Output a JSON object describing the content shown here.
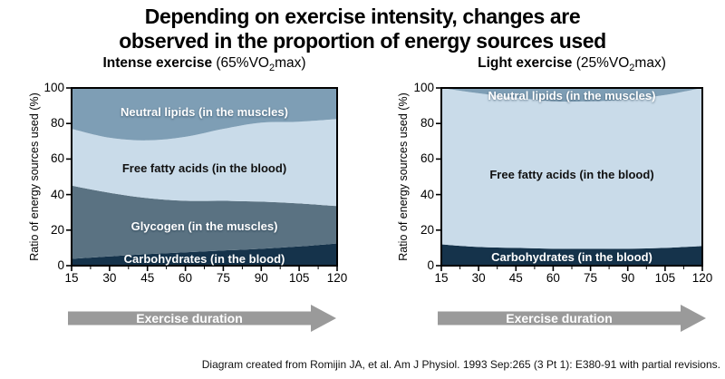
{
  "title": {
    "line1": "Depending on exercise intensity, changes are",
    "line2": "observed in the proportion of energy sources used"
  },
  "citation": "Diagram created from Romijin JA, et al. Am J Physiol. 1993 Sep:265 (3 Pt 1): E380-91 with partial revisions.",
  "colors": {
    "arrow": "#9A9A9A",
    "plot_border": "#000000",
    "carbohydrates": "#15334B",
    "glycogen": "#5A7282",
    "free_fatty_acids": "#C9DBE9",
    "neutral_lipids": "#7E9EB5"
  },
  "chart_data": [
    {
      "type": "area",
      "stacked": true,
      "title_bold": "Intense exercise",
      "title_paren_pre": " (65%VO",
      "title_subscript": "2",
      "title_paren_post": "max)",
      "ylabel": "Ratio of energy sources used (%)",
      "xlabel_arrow": "Exercise duration",
      "x": [
        15,
        30,
        45,
        60,
        75,
        90,
        105,
        120
      ],
      "x_tick_labels": [
        "15",
        "30",
        "45",
        "60",
        "75",
        "90",
        "105",
        "120"
      ],
      "ylim": [
        0,
        100
      ],
      "y_ticks": [
        0,
        20,
        40,
        60,
        80,
        100
      ],
      "grid": false,
      "series": [
        {
          "name": "Carbohydrates (in the blood)",
          "color": "#15334B",
          "label_color": "#FFFFFF",
          "cumulative_top": [
            3.8,
            5.2,
            6.5,
            7.5,
            8.5,
            9.5,
            10.8,
            12.5
          ]
        },
        {
          "name": "Glycogen (in the muscles)",
          "color": "#5A7282",
          "label_color": "#FFFFFF",
          "cumulative_top": [
            45,
            41,
            38,
            36.5,
            36.5,
            36,
            35,
            33.5
          ]
        },
        {
          "name": "Free fatty acids (in the blood)",
          "color": "#C9DBE9",
          "label_color": "#111111",
          "cumulative_top": [
            77,
            72,
            70.5,
            72.5,
            77,
            80.5,
            81,
            82.5
          ]
        },
        {
          "name": "Neutral lipids (in the muscles)",
          "color": "#7E9EB5",
          "label_color": "#FFFFFF",
          "cumulative_top": [
            100,
            100,
            100,
            100,
            100,
            100,
            100,
            100
          ]
        }
      ]
    },
    {
      "type": "area",
      "stacked": true,
      "title_bold": "Light exercise",
      "title_paren_pre": " (25%VO",
      "title_subscript": "2",
      "title_paren_post": "max)",
      "ylabel": "Ratio of energy sources used (%)",
      "xlabel_arrow": "Exercise duration",
      "x": [
        15,
        30,
        45,
        60,
        75,
        90,
        105,
        120
      ],
      "x_tick_labels": [
        "15",
        "30",
        "45",
        "60",
        "75",
        "90",
        "105",
        "120"
      ],
      "ylim": [
        0,
        100
      ],
      "y_ticks": [
        0,
        20,
        40,
        60,
        80,
        100
      ],
      "grid": false,
      "series": [
        {
          "name": "Carbohydrates (in the blood)",
          "color": "#15334B",
          "label_color": "#FFFFFF",
          "cumulative_top": [
            12,
            10.5,
            10,
            9.5,
            9.5,
            9.5,
            10,
            11
          ]
        },
        {
          "name": "Free fatty acids (in the blood)",
          "color": "#C9DBE9",
          "label_color": "#111111",
          "cumulative_top": [
            100,
            97,
            94.5,
            92.5,
            92.5,
            93.5,
            96,
            100
          ]
        },
        {
          "name": "Neutral lipids (in the muscles)",
          "color": "#7E9EB5",
          "label_color": "#FFFFFF",
          "cumulative_top": [
            100,
            100,
            100,
            100,
            100,
            100,
            100,
            100
          ]
        }
      ]
    }
  ]
}
